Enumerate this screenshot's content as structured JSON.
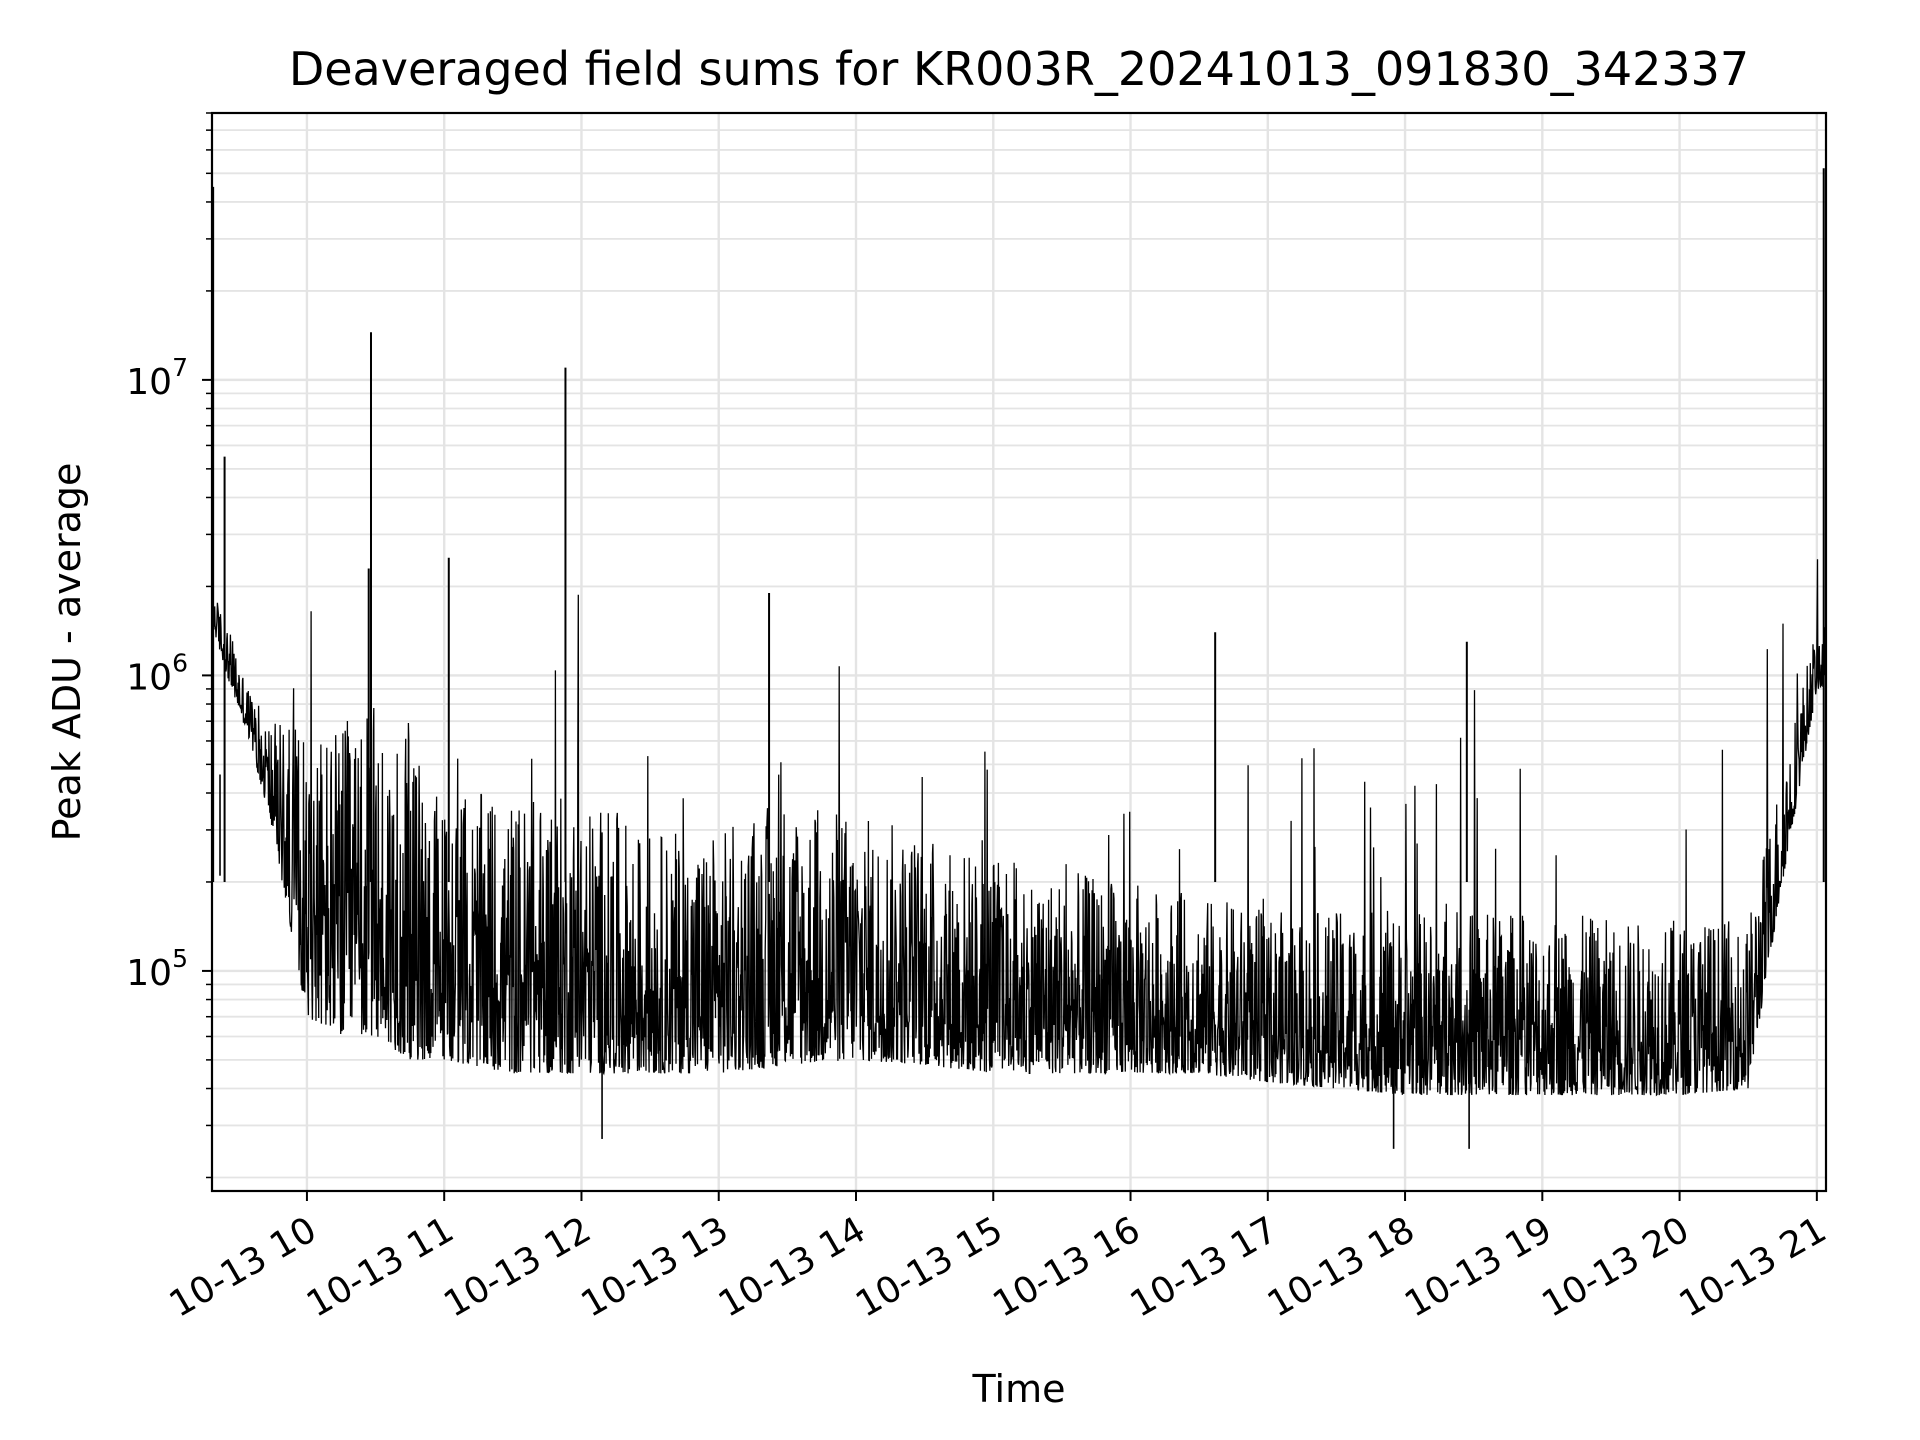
{
  "chart_data": {
    "type": "line",
    "title": "Deaveraged field sums for KR003R_20241013_091830_342337",
    "xlabel": "Time",
    "ylabel": "Peak ADU - average",
    "yscale": "log",
    "grid": true,
    "ylim": [
      18000,
      80000000
    ],
    "xlim": [
      "2024-10-13 09:18:30",
      "2024-10-13 21:04:00"
    ],
    "x_ticks": [
      {
        "label": "10-13 10",
        "time": "2024-10-13 10:00"
      },
      {
        "label": "10-13 11",
        "time": "2024-10-13 11:00"
      },
      {
        "label": "10-13 12",
        "time": "2024-10-13 12:00"
      },
      {
        "label": "10-13 13",
        "time": "2024-10-13 13:00"
      },
      {
        "label": "10-13 14",
        "time": "2024-10-13 14:00"
      },
      {
        "label": "10-13 15",
        "time": "2024-10-13 15:00"
      },
      {
        "label": "10-13 16",
        "time": "2024-10-13 16:00"
      },
      {
        "label": "10-13 17",
        "time": "2024-10-13 17:00"
      },
      {
        "label": "10-13 18",
        "time": "2024-10-13 18:00"
      },
      {
        "label": "10-13 19",
        "time": "2024-10-13 19:00"
      },
      {
        "label": "10-13 20",
        "time": "2024-10-13 20:00"
      },
      {
        "label": "10-13 21",
        "time": "2024-10-13 21:00"
      }
    ],
    "y_ticks": [
      {
        "base": "10",
        "exp": "5",
        "value": 100000
      },
      {
        "base": "10",
        "exp": "6",
        "value": 1000000
      },
      {
        "base": "10",
        "exp": "7",
        "value": 10000000
      }
    ],
    "series": [
      {
        "color": "#000000",
        "envelope": {
          "x": [
            "2024-10-13 09:18:30",
            "2024-10-13 09:25",
            "2024-10-13 09:35",
            "2024-10-13 09:45",
            "2024-10-13 10:00",
            "2024-10-13 10:15",
            "2024-10-13 10:30",
            "2024-10-13 10:45",
            "2024-10-13 11:00",
            "2024-10-13 11:30",
            "2024-10-13 12:00",
            "2024-10-13 12:30",
            "2024-10-13 13:00",
            "2024-10-13 13:30",
            "2024-10-13 14:00",
            "2024-10-13 14:30",
            "2024-10-13 15:00",
            "2024-10-13 15:30",
            "2024-10-13 16:00",
            "2024-10-13 16:30",
            "2024-10-13 17:00",
            "2024-10-13 17:30",
            "2024-10-13 18:00",
            "2024-10-13 18:30",
            "2024-10-13 19:00",
            "2024-10-13 19:30",
            "2024-10-13 20:00",
            "2024-10-13 20:30",
            "2024-10-13 20:45",
            "2024-10-13 21:00",
            "2024-10-13 21:04"
          ],
          "low": [
            1500000,
            1000000,
            600000,
            300000,
            70000,
            60000,
            60000,
            50000,
            50000,
            45000,
            45000,
            45000,
            45000,
            48000,
            50000,
            48000,
            45000,
            45000,
            45000,
            45000,
            42000,
            40000,
            38000,
            38000,
            38000,
            38000,
            38000,
            40000,
            200000,
            900000,
            900000
          ],
          "high": [
            2000000,
            1500000,
            900000,
            700000,
            700000,
            700000,
            800000,
            600000,
            400000,
            400000,
            400000,
            300000,
            300000,
            400000,
            350000,
            300000,
            250000,
            220000,
            200000,
            180000,
            160000,
            160000,
            160000,
            160000,
            160000,
            150000,
            150000,
            150000,
            500000,
            1500000,
            1500000
          ]
        },
        "spikes": [
          {
            "x": "2024-10-13 09:19",
            "y": 45000000
          },
          {
            "x": "2024-10-13 09:24",
            "y": 5500000
          },
          {
            "x": "2024-10-13 10:27",
            "y": 2300000
          },
          {
            "x": "2024-10-13 10:28",
            "y": 14500000
          },
          {
            "x": "2024-10-13 11:02",
            "y": 2500000
          },
          {
            "x": "2024-10-13 11:53",
            "y": 11000000
          },
          {
            "x": "2024-10-13 13:22",
            "y": 1900000
          },
          {
            "x": "2024-10-13 16:37",
            "y": 1400000
          },
          {
            "x": "2024-10-13 18:27",
            "y": 1300000
          },
          {
            "x": "2024-10-13 21:03",
            "y": 52000000
          }
        ],
        "minima": [
          {
            "x": "2024-10-13 09:22",
            "y": 210000
          },
          {
            "x": "2024-10-13 12:09",
            "y": 27000
          },
          {
            "x": "2024-10-13 17:55",
            "y": 25000
          },
          {
            "x": "2024-10-13 18:28",
            "y": 25000
          }
        ]
      }
    ]
  }
}
